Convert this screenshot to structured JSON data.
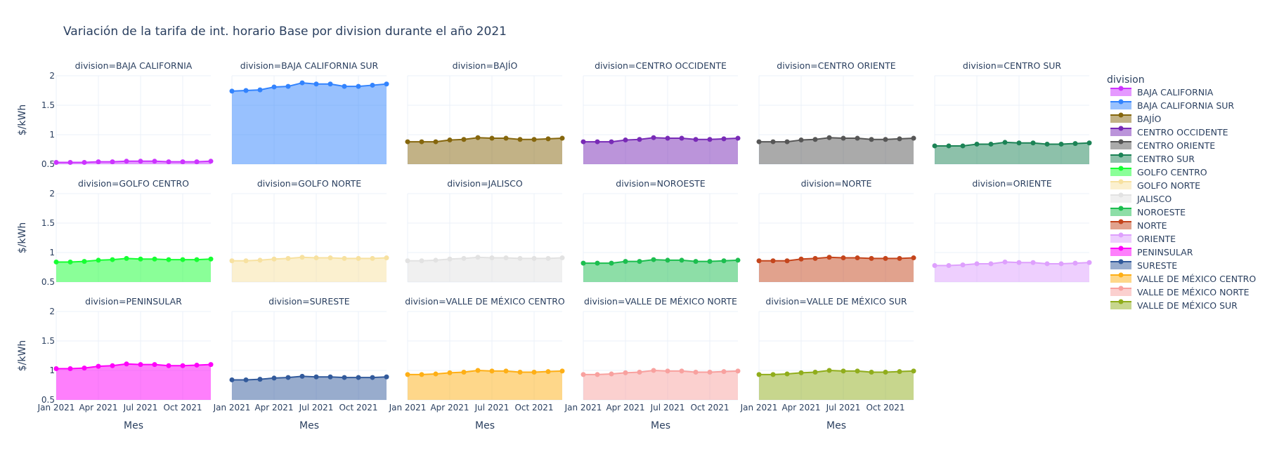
{
  "chart_data": {
    "type": "area",
    "title": "Variación de la tarifa de int. horario Base por division durante el año 2021",
    "xlabel": "Mes",
    "ylabel": "$/kWh",
    "ylim": [
      0.5,
      2.0
    ],
    "y_ticks": [
      "0.5",
      "1",
      "1.5",
      "2"
    ],
    "x": [
      "2021-01",
      "2021-02",
      "2021-03",
      "2021-04",
      "2021-05",
      "2021-06",
      "2021-07",
      "2021-08",
      "2021-09",
      "2021-10",
      "2021-11",
      "2021-12"
    ],
    "x_tick_labels": [
      "Jan 2021",
      "Apr 2021",
      "Jul 2021",
      "Oct 2021"
    ],
    "x_tick_indices": [
      0,
      3,
      6,
      9
    ],
    "legend_title": "division",
    "legend_position": "right",
    "facet_prefix": "division=",
    "grid": true,
    "series": [
      {
        "name": "BAJA CALIFORNIA",
        "color": "#CC33FF",
        "values": [
          0.53,
          0.53,
          0.53,
          0.54,
          0.54,
          0.55,
          0.55,
          0.55,
          0.54,
          0.54,
          0.54,
          0.55
        ]
      },
      {
        "name": "BAJA CALIFORNIA SUR",
        "color": "#3283FE",
        "values": [
          1.74,
          1.75,
          1.76,
          1.81,
          1.82,
          1.88,
          1.86,
          1.86,
          1.82,
          1.82,
          1.84,
          1.86
        ]
      },
      {
        "name": "BAJÍO",
        "color": "#85660D",
        "values": [
          0.88,
          0.88,
          0.88,
          0.91,
          0.92,
          0.95,
          0.94,
          0.94,
          0.92,
          0.92,
          0.93,
          0.94
        ]
      },
      {
        "name": "CENTRO OCCIDENTE",
        "color": "#782AB6",
        "values": [
          0.88,
          0.88,
          0.88,
          0.91,
          0.92,
          0.95,
          0.94,
          0.94,
          0.92,
          0.92,
          0.93,
          0.94
        ]
      },
      {
        "name": "CENTRO ORIENTE",
        "color": "#565656",
        "values": [
          0.88,
          0.88,
          0.88,
          0.91,
          0.92,
          0.95,
          0.94,
          0.94,
          0.92,
          0.92,
          0.93,
          0.94
        ]
      },
      {
        "name": "CENTRO SUR",
        "color": "#1C8356",
        "values": [
          0.81,
          0.81,
          0.81,
          0.84,
          0.84,
          0.87,
          0.86,
          0.86,
          0.84,
          0.84,
          0.85,
          0.86
        ]
      },
      {
        "name": "GOLFO CENTRO",
        "color": "#16FF32",
        "values": [
          0.84,
          0.84,
          0.85,
          0.87,
          0.88,
          0.9,
          0.89,
          0.89,
          0.88,
          0.88,
          0.88,
          0.89
        ]
      },
      {
        "name": "GOLFO NORTE",
        "color": "#F7E1A0",
        "values": [
          0.86,
          0.86,
          0.87,
          0.89,
          0.9,
          0.92,
          0.91,
          0.91,
          0.9,
          0.9,
          0.9,
          0.91
        ]
      },
      {
        "name": "JALISCO",
        "color": "#E2E2E2",
        "values": [
          0.86,
          0.86,
          0.87,
          0.89,
          0.9,
          0.92,
          0.91,
          0.91,
          0.9,
          0.9,
          0.9,
          0.91
        ]
      },
      {
        "name": "NOROESTE",
        "color": "#1CBE4F",
        "values": [
          0.82,
          0.82,
          0.82,
          0.85,
          0.85,
          0.88,
          0.87,
          0.87,
          0.85,
          0.85,
          0.86,
          0.87
        ]
      },
      {
        "name": "NORTE",
        "color": "#C4451C",
        "values": [
          0.86,
          0.86,
          0.86,
          0.89,
          0.9,
          0.92,
          0.91,
          0.91,
          0.9,
          0.9,
          0.9,
          0.91
        ]
      },
      {
        "name": "ORIENTE",
        "color": "#DEA0FD",
        "values": [
          0.78,
          0.78,
          0.79,
          0.81,
          0.81,
          0.84,
          0.83,
          0.83,
          0.81,
          0.81,
          0.82,
          0.83
        ]
      },
      {
        "name": "PENINSULAR",
        "color": "#FE00FA",
        "values": [
          1.03,
          1.03,
          1.04,
          1.07,
          1.08,
          1.11,
          1.1,
          1.1,
          1.08,
          1.08,
          1.09,
          1.1
        ]
      },
      {
        "name": "SURESTE",
        "color": "#325A9B",
        "values": [
          0.84,
          0.84,
          0.85,
          0.87,
          0.88,
          0.9,
          0.89,
          0.89,
          0.88,
          0.88,
          0.88,
          0.89
        ]
      },
      {
        "name": "VALLE DE MÉXICO CENTRO",
        "color": "#FEAF16",
        "values": [
          0.93,
          0.93,
          0.94,
          0.96,
          0.97,
          1.0,
          0.99,
          0.99,
          0.97,
          0.97,
          0.98,
          0.99
        ]
      },
      {
        "name": "VALLE DE MÉXICO NORTE",
        "color": "#F8A19F",
        "values": [
          0.93,
          0.93,
          0.94,
          0.96,
          0.97,
          1.0,
          0.99,
          0.99,
          0.97,
          0.97,
          0.98,
          0.99
        ]
      },
      {
        "name": "VALLE DE MÉXICO SUR",
        "color": "#90AD1C",
        "values": [
          0.93,
          0.93,
          0.94,
          0.96,
          0.97,
          1.0,
          0.99,
          0.99,
          0.97,
          0.97,
          0.98,
          0.99
        ]
      }
    ]
  }
}
